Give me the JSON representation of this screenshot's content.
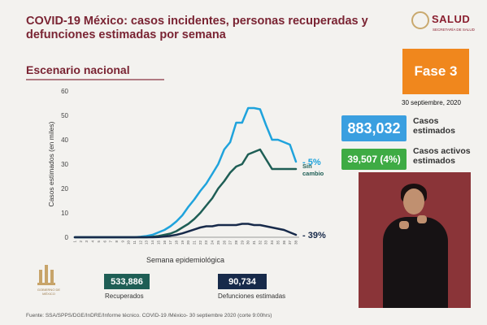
{
  "header": {
    "title": "COVID-19 México: casos incidentes, personas recuperadas y defunciones estimadas por semana",
    "subtitle": "Escenario nacional",
    "logo_text": "SALUD",
    "logo_sub": "SECRETARÍA DE SALUD",
    "emblem_text": "GOBIERNO DE MÉXICO"
  },
  "phase": {
    "label": "Fase 3",
    "date": "30 septiembre, 2020",
    "color": "#f0871d"
  },
  "stats": {
    "casos_estimados": {
      "value": "883,032",
      "label_line1": "Casos",
      "label_line2": "estimados",
      "color": "#3a9fe0"
    },
    "casos_activos": {
      "value": "39,507 (4%)",
      "label_line1": "Casos activos",
      "label_line2": "estimados",
      "color": "#3eab44"
    },
    "recuperados": {
      "value": "533,886",
      "label": "Recuperados",
      "color": "#1e5e55"
    },
    "defunciones": {
      "value": "90,734",
      "label": "Defunciones estimadas",
      "color": "#172a4a"
    }
  },
  "source": "Fuente: SSA/SPPS/DGE/InDRE/Informe técnico. COVID-19 /México- 30 septiembre 2020 (corte 9:00hrs)",
  "chart_data": {
    "type": "line",
    "xlabel": "Semana epidemiológica",
    "ylabel": "Casos estimados (en miles)",
    "ylim": [
      0,
      60
    ],
    "yticks": [
      0,
      10,
      20,
      30,
      40,
      50,
      60
    ],
    "x": [
      1,
      2,
      3,
      4,
      5,
      6,
      7,
      8,
      9,
      10,
      11,
      12,
      13,
      14,
      15,
      16,
      17,
      18,
      19,
      20,
      21,
      22,
      23,
      24,
      25,
      26,
      27,
      28,
      29,
      30,
      31,
      32,
      33,
      34,
      35,
      36,
      37,
      38
    ],
    "grid": false,
    "series": [
      {
        "color": "#1fa3dc",
        "values": [
          0,
          0,
          0,
          0,
          0,
          0,
          0,
          0,
          0,
          0,
          0,
          0.2,
          0.5,
          1,
          2,
          3,
          4.5,
          6.5,
          9,
          12.5,
          15.5,
          19,
          22,
          26,
          30,
          36,
          39,
          47,
          47,
          53,
          53,
          52.5,
          46,
          40,
          40,
          39,
          38,
          31
        ]
      },
      {
        "color": "#1e5e55",
        "values": [
          0,
          0,
          0,
          0,
          0,
          0,
          0,
          0,
          0,
          0,
          0,
          0,
          0,
          0.2,
          0.5,
          1,
          1.5,
          2.5,
          4,
          5.5,
          7.5,
          10,
          13,
          16,
          20,
          23,
          26.5,
          29,
          30,
          34,
          35,
          36,
          32,
          28,
          28,
          28,
          28,
          28
        ]
      },
      {
        "color": "#172a4a",
        "values": [
          0,
          0,
          0,
          0,
          0,
          0,
          0,
          0,
          0,
          0,
          0,
          0,
          0,
          0,
          0.1,
          0.3,
          0.6,
          1,
          1.6,
          2.4,
          3.2,
          4,
          4.5,
          4.5,
          5,
          5,
          5,
          5,
          5.5,
          5.5,
          5,
          5,
          4.5,
          4,
          3.5,
          3,
          2,
          1
        ]
      }
    ],
    "annotations": [
      {
        "series": 0,
        "text": "- 5%",
        "color": "#1fa3dc"
      },
      {
        "series": 1,
        "text": "Sin\ncambio",
        "color": "#1e5e55"
      },
      {
        "series": 2,
        "text": "- 39%",
        "color": "#172a4a"
      }
    ]
  }
}
